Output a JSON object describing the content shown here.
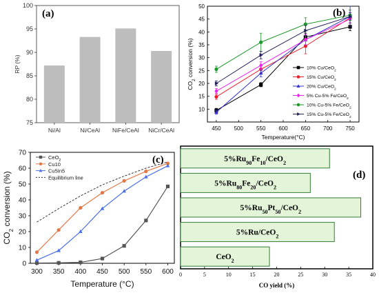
{
  "panels": {
    "a_label": "(a)",
    "b_label": "(b)",
    "c_label": "(c)",
    "d_label": "(d)"
  },
  "chart_data": [
    {
      "id": "a",
      "type": "bar",
      "ylabel": "RP (%)",
      "ylim": [
        75,
        100
      ],
      "yticks": [
        75,
        80,
        85,
        90,
        95,
        100
      ],
      "categories": [
        "Ni/Al",
        "Ni/CeAl",
        "NiFe/CeAl",
        "NiCr/CeAl"
      ],
      "values": [
        87.2,
        93.3,
        95.1,
        90.3
      ],
      "bar_color": "#bdbdbd",
      "grid": false
    },
    {
      "id": "b",
      "type": "line",
      "xlabel": "Temperature(°C)",
      "ylabel": "CO2 conversion (%)",
      "ylabel_rich": {
        "pre": "CO",
        "sub": "2",
        "post": " conversion (%)"
      },
      "xlim": [
        430,
        770
      ],
      "ylim": [
        5,
        50
      ],
      "xticks": [
        450,
        500,
        550,
        600,
        650,
        700,
        750
      ],
      "yticks": [
        10,
        15,
        20,
        25,
        30,
        35,
        40,
        45,
        50
      ],
      "x": [
        450,
        550,
        650,
        750
      ],
      "legend_position": "bottom-right",
      "series": [
        {
          "name": "10% Cu/CeO2",
          "rich": {
            "pre": "10% Cu/CeO",
            "sub": "2",
            "post": ""
          },
          "color": "#000000",
          "marker": "square",
          "values": [
            9.5,
            19.5,
            38.0,
            42.0
          ],
          "errors": [
            0.8,
            0.8,
            1.5,
            1.5
          ]
        },
        {
          "name": "15% Cu/CeO2",
          "rich": {
            "pre": "15% Cu/CeO",
            "sub": "2",
            "post": ""
          },
          "color": "#e8202b",
          "marker": "circle",
          "values": [
            14.8,
            25.5,
            34.5,
            45.5
          ],
          "errors": [
            1.0,
            1.5,
            3.0,
            2.0
          ]
        },
        {
          "name": "20% Cu/CeO2",
          "rich": {
            "pre": "20% Cu/CeO",
            "sub": "2",
            "post": ""
          },
          "color": "#3030c8",
          "marker": "triangle-up",
          "values": [
            8.8,
            24.0,
            37.0,
            46.0
          ],
          "errors": [
            0.8,
            1.5,
            2.0,
            1.5
          ]
        },
        {
          "name": "5% Cu-5% Fe/CeO2",
          "rich": {
            "pre": "5% Cu-5% Fe/CeO",
            "sub": "2",
            "post": ""
          },
          "color": "#ee22ee",
          "marker": "diamond",
          "values": [
            17.0,
            27.0,
            37.0,
            45.0
          ],
          "errors": [
            1.0,
            1.5,
            2.0,
            1.5
          ]
        },
        {
          "name": "10% Cu-5% Fe/CeO2",
          "rich": {
            "pre": "10% Cu-5% Fe/CeO",
            "sub": "2",
            "post": ""
          },
          "color": "#1a9a2a",
          "marker": "circle",
          "values": [
            25.5,
            36.0,
            43.0,
            46.5
          ],
          "errors": [
            1.2,
            3.5,
            2.5,
            2.0
          ]
        },
        {
          "name": "15% Cu-5% Fe/CeO2",
          "rich": {
            "pre": "15% Cu-5% Fe/CeO",
            "sub": "2",
            "post": ""
          },
          "color": "#20205a",
          "marker": "triangle-right",
          "values": [
            20.0,
            31.0,
            40.5,
            46.0
          ],
          "errors": [
            1.0,
            1.5,
            2.0,
            4.0
          ]
        }
      ]
    },
    {
      "id": "c",
      "type": "line",
      "xlabel": "Temperature (°C)",
      "ylabel": "CO2 conversion (%)",
      "ylabel_rich": {
        "pre": "CO",
        "sub": "2",
        "post": " conversion (%)"
      },
      "xlim": [
        285,
        615
      ],
      "ylim": [
        0,
        70
      ],
      "xticks": [
        300,
        350,
        400,
        450,
        500,
        550,
        600
      ],
      "yticks": [
        0,
        10,
        20,
        30,
        40,
        50,
        60,
        70
      ],
      "x": [
        300,
        350,
        400,
        450,
        500,
        550,
        600
      ],
      "legend_position": "top-left",
      "series": [
        {
          "name": "CeO2",
          "rich": {
            "pre": "CeO",
            "sub": "2",
            "post": ""
          },
          "color": "#555555",
          "marker": "square",
          "values": [
            0.2,
            0.3,
            0.6,
            3.0,
            11.0,
            27.0,
            48.5
          ]
        },
        {
          "name": "Cu10",
          "rich": {
            "pre": "Cu10",
            "sub": "",
            "post": ""
          },
          "color": "#e07848",
          "marker": "circle",
          "values": [
            7.0,
            21.0,
            35.0,
            44.5,
            52.0,
            58.0,
            63.0
          ]
        },
        {
          "name": "Cu5In5",
          "rich": {
            "pre": "Cu5In5",
            "sub": "",
            "post": ""
          },
          "color": "#4a6fe8",
          "marker": "triangle-up",
          "values": [
            2.0,
            8.0,
            20.0,
            34.5,
            45.5,
            54.5,
            61.5
          ]
        },
        {
          "name": "Equilibrium line",
          "rich": {
            "pre": "Equilibrium line",
            "sub": "",
            "post": ""
          },
          "color": "#333333",
          "marker": "none",
          "dashed": true,
          "values": [
            26.0,
            34.5,
            42.5,
            49.5,
            55.0,
            60.0,
            64.0
          ]
        }
      ]
    },
    {
      "id": "d",
      "type": "bar",
      "orientation": "horizontal",
      "xlabel": "CO yield (%)",
      "xlim": [
        0,
        40
      ],
      "xticks": [
        0,
        5,
        10,
        15,
        20,
        25,
        30,
        35,
        40
      ],
      "categories": [
        "5%Ru90Fe10/CeO2",
        "5%Ru80Fe20/CeO2",
        "5%Ru50Pt50/CeO2",
        "5%Ru/CeO2",
        "CeO2"
      ],
      "category_rich": [
        [
          [
            "5%Ru",
            "n"
          ],
          [
            "90",
            "sub"
          ],
          [
            "Fe",
            "n"
          ],
          [
            "10",
            "sub"
          ],
          [
            "/CeO",
            "n"
          ],
          [
            "2",
            "sub"
          ]
        ],
        [
          [
            "5%Ru",
            "n"
          ],
          [
            "80",
            "sub"
          ],
          [
            "Fe",
            "n"
          ],
          [
            "20",
            "sub"
          ],
          [
            "/CeO",
            "n"
          ],
          [
            "2",
            "sub"
          ]
        ],
        [
          [
            "5%Ru",
            "n"
          ],
          [
            "50",
            "sub"
          ],
          [
            "Pt",
            "n"
          ],
          [
            "50",
            "sub"
          ],
          [
            "/CeO",
            "n"
          ],
          [
            "2",
            "sub"
          ]
        ],
        [
          [
            "5%Ru/CeO",
            "n"
          ],
          [
            "2",
            "sub"
          ]
        ],
        [
          [
            "CeO",
            "n"
          ],
          [
            "2",
            "sub"
          ]
        ]
      ],
      "values": [
        31.0,
        27.0,
        37.5,
        32.0,
        18.5
      ],
      "bar_color": "#e4f4d8",
      "bar_edge": "#2e7d32"
    }
  ]
}
